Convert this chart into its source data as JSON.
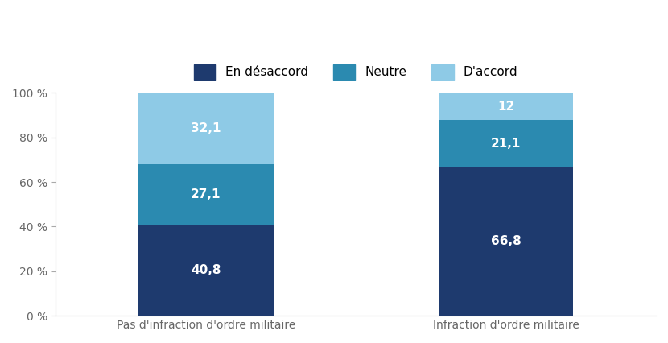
{
  "categories": [
    "Pas d'infraction d'ordre militaire",
    "Infraction d'ordre militaire"
  ],
  "series": {
    "En désaccord": [
      40.8,
      66.8
    ],
    "Neutre": [
      27.1,
      21.1
    ],
    "D'accord": [
      32.1,
      12.0
    ]
  },
  "colors": {
    "En désaccord": "#1e3a6e",
    "Neutre": "#2b8ab0",
    "D'accord": "#8ecae6"
  },
  "labels": {
    "En désaccord": [
      "40,8",
      "66,8"
    ],
    "Neutre": [
      "27,1",
      "21,1"
    ],
    "D'accord": [
      "32,1",
      "12"
    ]
  },
  "ylim": [
    0,
    100
  ],
  "yticks": [
    0,
    20,
    40,
    60,
    80,
    100
  ],
  "ytick_labels": [
    "0 %",
    "20 %",
    "40 %",
    "60 %",
    "80 %",
    "100 %"
  ],
  "legend_order": [
    "En désaccord",
    "Neutre",
    "D'accord"
  ],
  "bar_positions": [
    1,
    3
  ],
  "bar_width": 0.9,
  "xlim": [
    0,
    4
  ],
  "xtick_positions": [
    1,
    3
  ],
  "background_color": "#ffffff",
  "text_color": "#ffffff",
  "label_fontsize": 11,
  "legend_fontsize": 11,
  "tick_fontsize": 10,
  "axis_label_fontsize": 10,
  "spine_color": "#aaaaaa",
  "tick_label_color": "#666666"
}
